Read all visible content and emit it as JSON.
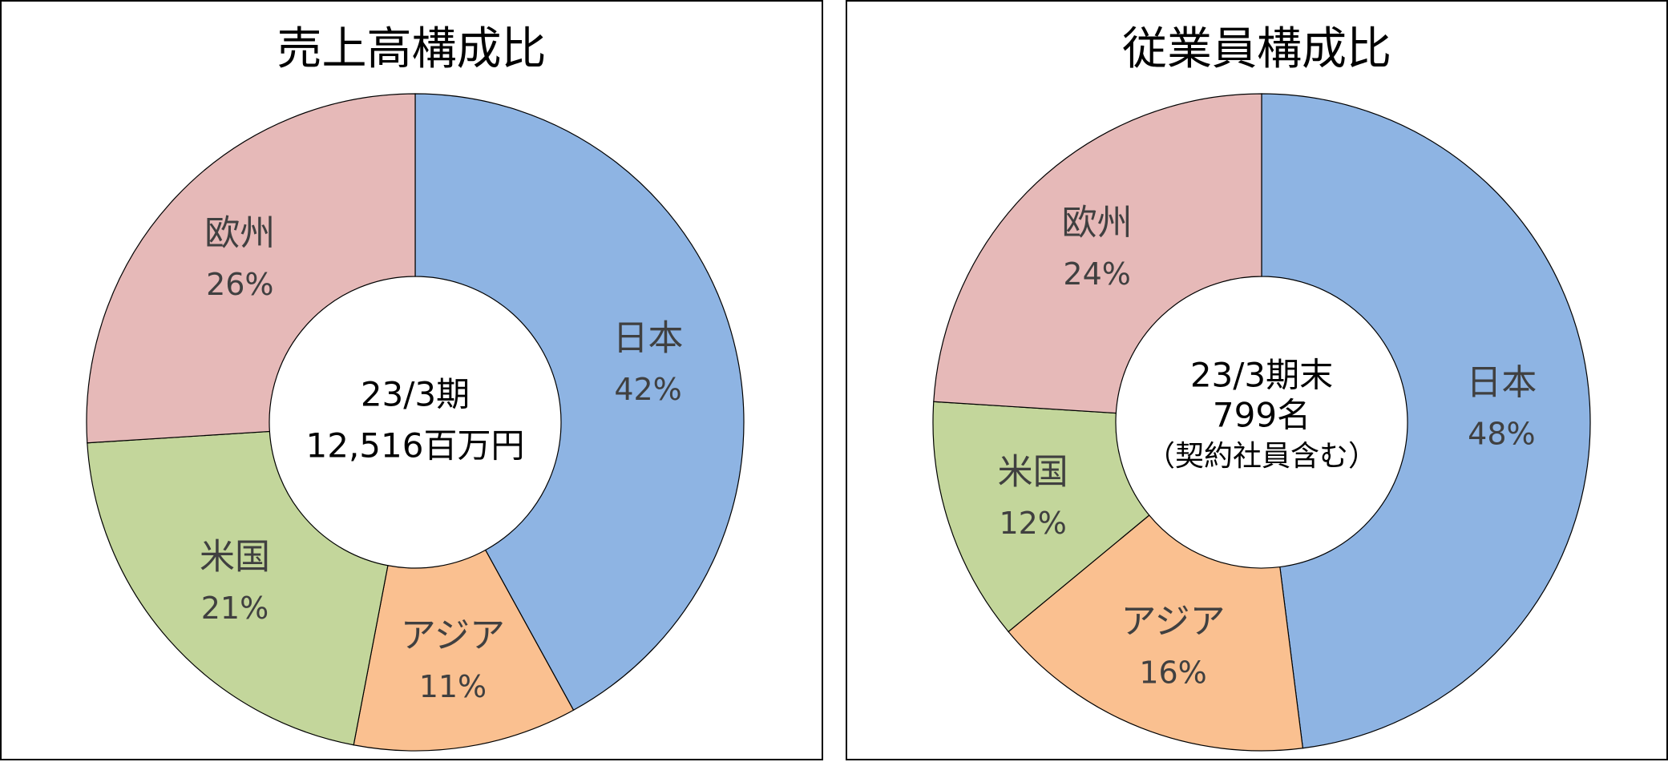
{
  "chart_data": [
    {
      "type": "pie",
      "title": "売上高構成比",
      "center_label": [
        "23/3期",
        "12,516百万円"
      ],
      "categories": [
        "日本",
        "アジア",
        "米国",
        "欧州"
      ],
      "values": [
        42,
        11,
        21,
        26
      ],
      "value_labels": [
        "42%",
        "11%",
        "21%",
        "26%"
      ],
      "colors": [
        "#8EB4E3",
        "#FAC090",
        "#C3D69B",
        "#E6B9B8"
      ],
      "donut": true,
      "start": "12 o'clock",
      "direction": "clockwise",
      "legend": "none"
    },
    {
      "type": "pie",
      "title": "従業員構成比",
      "center_label": [
        "23/3期末",
        "799名",
        "（契約社員含む）"
      ],
      "categories": [
        "日本",
        "アジア",
        "米国",
        "欧州"
      ],
      "values": [
        48,
        16,
        12,
        24
      ],
      "value_labels": [
        "48%",
        "16%",
        "12%",
        "24%"
      ],
      "colors": [
        "#8EB4E3",
        "#FAC090",
        "#C3D69B",
        "#E6B9B8"
      ],
      "donut": true,
      "start": "12 o'clock",
      "direction": "clockwise",
      "legend": "none"
    }
  ]
}
